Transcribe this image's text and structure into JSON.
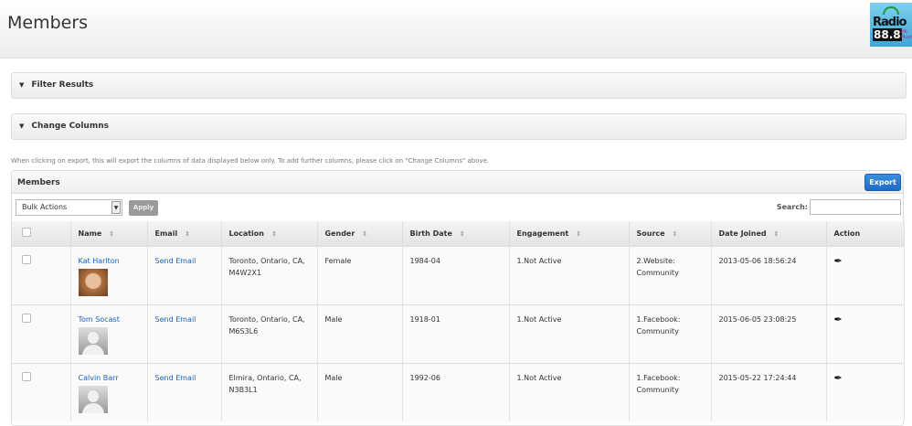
{
  "header": {
    "title": "Members",
    "logo_text": "Radio 88.8 Hit Music"
  },
  "panels": {
    "filter": "Filter Results",
    "columns": "Change Columns"
  },
  "note": "When clicking on export, this will export the columns of data displayed below only. To add further columns, please click on \"Change Columns\" above.",
  "box": {
    "title": "Members",
    "export": "Export",
    "bulk": "Bulk Actions",
    "apply": "Apply",
    "search_label": "Search:"
  },
  "columns": [
    "Name",
    "Email",
    "Location",
    "Gender",
    "Birth Date",
    "Engagement",
    "Source",
    "Date Joined",
    "Action"
  ],
  "rows": [
    {
      "name": "Kat Harlton",
      "email": "Send Email",
      "loc1": "Toronto, Ontario, CA,",
      "loc2": "M4W2X1",
      "gender": "Female",
      "birth": "1984-04",
      "eng": "1.Not Active",
      "src1": "2.Website:",
      "src2": "Community",
      "joined": "2013-05-06 18:56:24",
      "avatar": "photo"
    },
    {
      "name": "Tom Socast",
      "email": "Send Email",
      "loc1": "Toronto, Ontario, CA,",
      "loc2": "M6S3L6",
      "gender": "Male",
      "birth": "1918-01",
      "eng": "1.Not Active",
      "src1": "1.Facebook:",
      "src2": "Community",
      "joined": "2015-06-05 23:08:25",
      "avatar": "placeholder"
    },
    {
      "name": "Calvin Barr",
      "email": "Send Email",
      "loc1": "Elmira, Ontario, CA,",
      "loc2": "N3B3L1",
      "gender": "Male",
      "birth": "1992-06",
      "eng": "1.Not Active",
      "src1": "1.Facebook:",
      "src2": "Community",
      "joined": "2015-05-22 17:24:44",
      "avatar": "placeholder"
    }
  ],
  "colors": {
    "export": "#1b6cc6",
    "link": "#1b63b8"
  }
}
